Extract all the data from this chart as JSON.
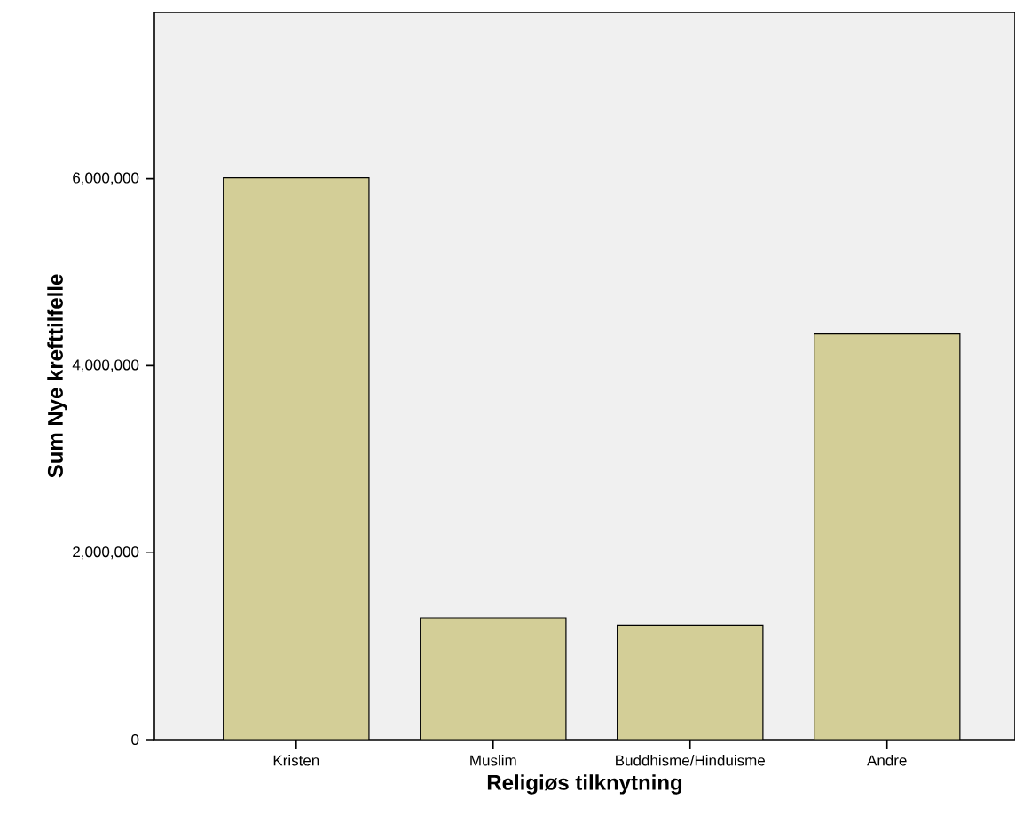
{
  "chart_data": {
    "type": "bar",
    "xlabel": "Religiøs tilknytning",
    "ylabel": "Sum Nye krefttilfelle",
    "categories": [
      "Kristen",
      "Muslim",
      "Buddhisme/Hinduisme",
      "Andre"
    ],
    "values": [
      6010000,
      1300000,
      1220000,
      4340000
    ],
    "color": "#d3ce97",
    "ylim": [
      0,
      7780000
    ],
    "yticks": [
      0,
      {
        "value": 2000000,
        "label": "2,000,000"
      },
      {
        "value": 4000000,
        "label": "4,000,000"
      },
      {
        "value": 6000000,
        "label": "6,000,000"
      }
    ],
    "grid": false
  }
}
